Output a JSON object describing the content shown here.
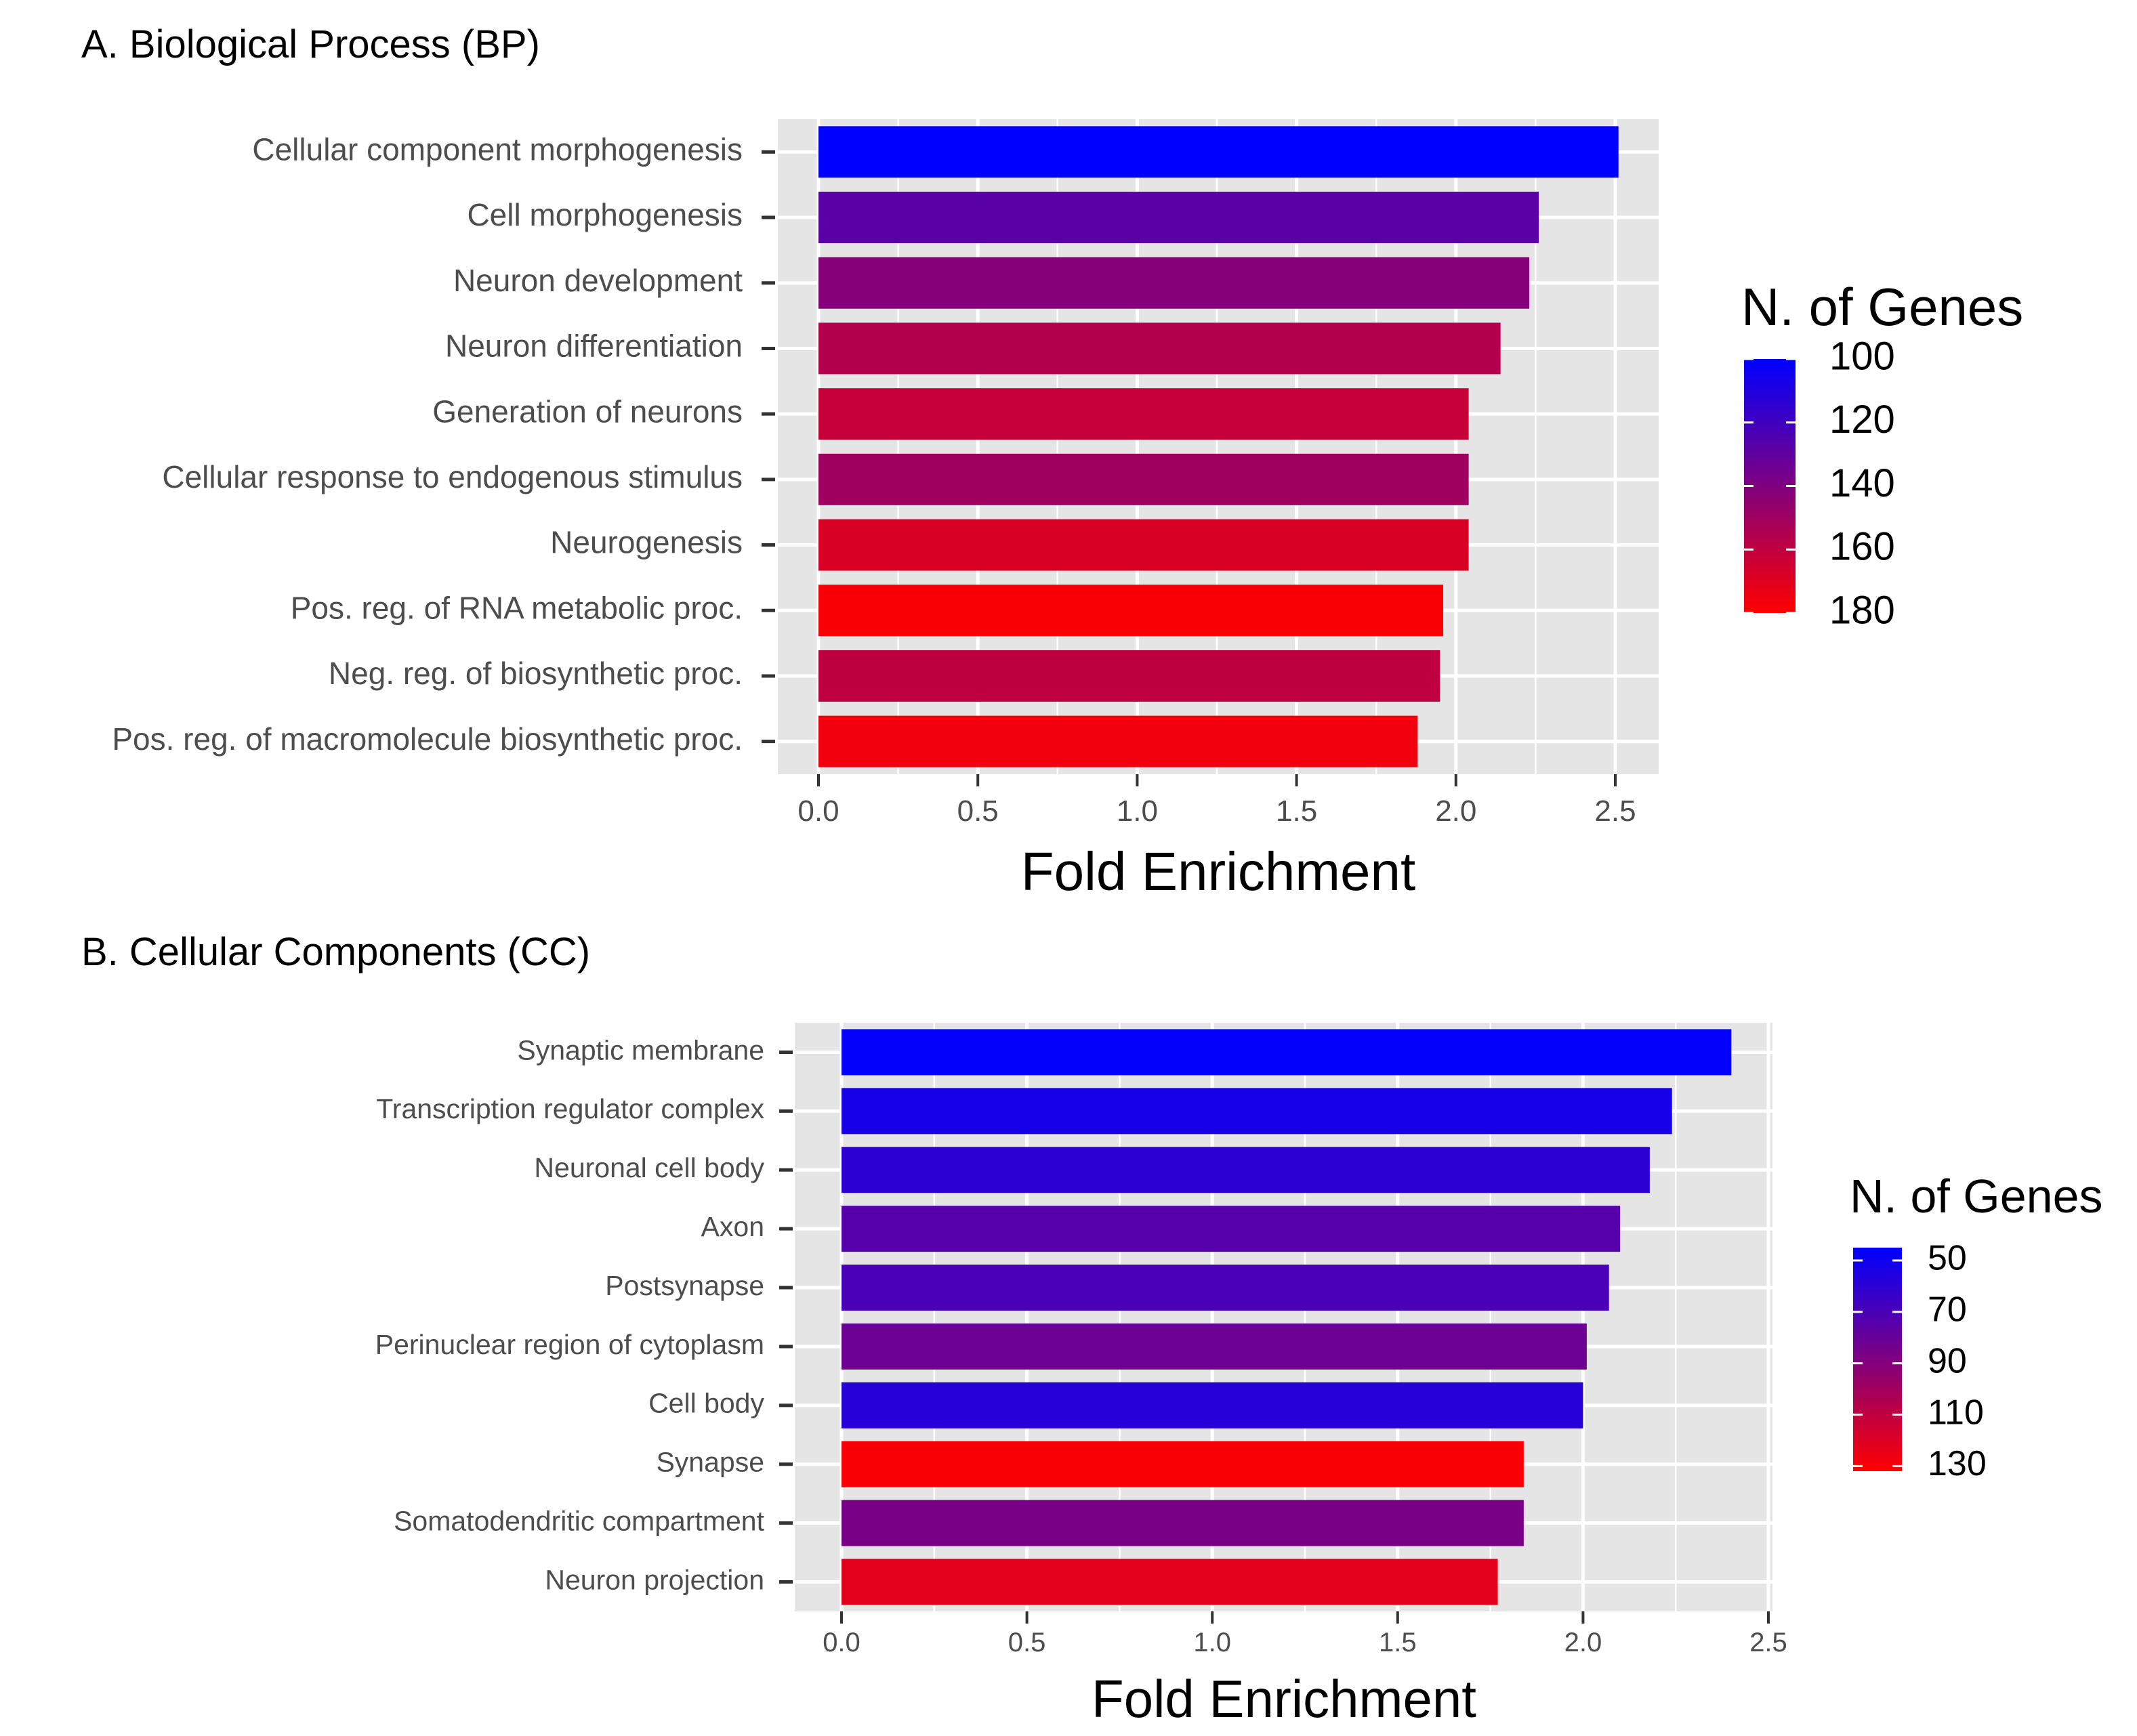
{
  "chart_data": [
    {
      "type": "bar",
      "orientation": "horizontal",
      "title": "A. Biological Process (BP)",
      "xlabel": "Fold Enrichment",
      "ylabel": "",
      "xlim": [
        0,
        2.5
      ],
      "x_ticks": [
        "0.0",
        "0.5",
        "1.0",
        "1.5",
        "2.0",
        "2.5"
      ],
      "categories": [
        "Cellular component morphogenesis",
        "Cell morphogenesis",
        "Neuron development",
        "Neuron differentiation",
        "Generation of neurons",
        "Cellular response to endogenous stimulus",
        "Neurogenesis",
        "Pos. reg. of RNA metabolic proc.",
        "Neg. reg. of biosynthetic proc.",
        "Pos. reg. of macromolecule biosynthetic proc."
      ],
      "values": [
        2.51,
        2.26,
        2.23,
        2.14,
        2.04,
        2.04,
        2.04,
        1.96,
        1.95,
        1.88
      ],
      "n_genes": [
        100,
        128,
        142,
        156,
        162,
        150,
        168,
        178,
        160,
        176
      ],
      "color_legend": {
        "title": "N. of Genes",
        "ticks": [
          "100",
          "120",
          "140",
          "160",
          "180"
        ],
        "min": 100,
        "max": 180,
        "low_color": "#0000ff",
        "high_color": "#ff0000"
      },
      "grid": true
    },
    {
      "type": "bar",
      "orientation": "horizontal",
      "title": "B. Cellular Components (CC)",
      "xlabel": "Fold Enrichment",
      "ylabel": "",
      "xlim": [
        0,
        2.5
      ],
      "x_ticks": [
        "0.0",
        "0.5",
        "1.0",
        "1.5",
        "2.0",
        "2.5"
      ],
      "categories": [
        "Synaptic membrane",
        "Transcription regulator complex",
        "Neuronal cell body",
        "Axon",
        "Postsynapse",
        "Perinuclear region of cytoplasm",
        "Cell body",
        "Synapse",
        "Somatodendritic compartment",
        "Neuron projection"
      ],
      "values": [
        2.4,
        2.24,
        2.18,
        2.1,
        2.07,
        2.01,
        2.0,
        1.84,
        1.84,
        1.77
      ],
      "n_genes": [
        46,
        53,
        60,
        74,
        70,
        82,
        58,
        130,
        86,
        122
      ],
      "color_legend": {
        "title": "N. of Genes",
        "ticks": [
          "50",
          "70",
          "90",
          "110",
          "130"
        ],
        "min": 45,
        "max": 132,
        "low_color": "#0000ff",
        "high_color": "#ff0000"
      },
      "grid": true
    }
  ]
}
